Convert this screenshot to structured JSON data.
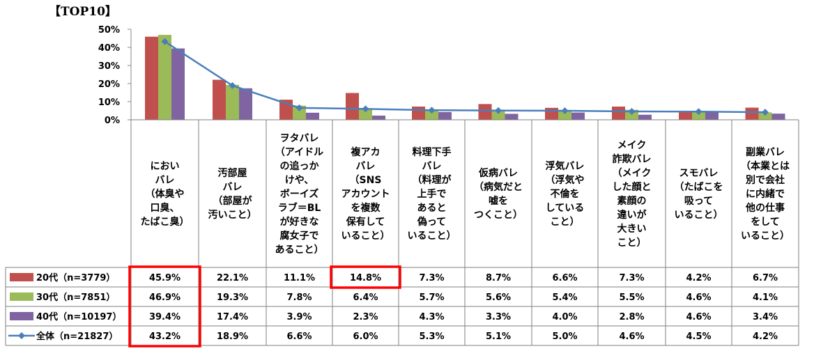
{
  "chart_data": {
    "type": "bar",
    "title": "【TOP10】",
    "yticks": [
      "50%",
      "40%",
      "30%",
      "20%",
      "10%",
      "0%"
    ],
    "ylim": [
      0,
      50
    ],
    "grid": false,
    "categories": [
      "においバレ（体臭や口臭、たばこ臭）",
      "汚部屋バレ（部屋が汚いこと）",
      "ヲタバレ（アイドルの追っかけや、ボーイズラブ＝BLが好きな腐女子であること）",
      "複アカバレ（SNSアカウントを複数保有していること）",
      "料理下手バレ（料理が上手であると偽っていること）",
      "仮病バレ（病気だと嘘をつくこと）",
      "浮気バレ（浮気や不倫をしていること）",
      "メイク詐欺バレ（メイクした顔と素顔の違いが大きいこと）",
      "スモバレ（たばこを吸っていること）",
      "副業バレ（本業とは別で会社に内緒で他の仕事をしていること）"
    ],
    "category_lines": [
      [
        "におい",
        "バレ",
        "（体臭や",
        "口臭、",
        "たばこ臭）"
      ],
      [
        "汚部屋",
        "バレ",
        "（部屋が",
        "汚いこと）"
      ],
      [
        "ヲタバレ",
        "（アイドル",
        "の追っか",
        "けや、",
        "ボーイズ",
        "ラブ＝BL",
        "が好きな",
        "腐女子で",
        "あること）"
      ],
      [
        "複アカ",
        "バレ",
        "（SNS",
        "アカウント",
        "を複数",
        "保有して",
        "いること）"
      ],
      [
        "料理下手",
        "バレ",
        "（料理が",
        "上手で",
        "あると",
        "偽って",
        "いること）"
      ],
      [
        "仮病バレ",
        "（病気だと",
        "嘘を",
        "つくこと）"
      ],
      [
        "浮気バレ",
        "（浮気や",
        "不倫を",
        "している",
        "こと）"
      ],
      [
        "メイク",
        "詐欺バレ",
        "（メイク",
        "した顔と",
        "素顔の",
        "違いが",
        "大きい",
        "こと）"
      ],
      [
        "スモバレ",
        "（たばこを",
        "吸って",
        "いること）"
      ],
      [
        "副業バレ",
        "（本業とは",
        "別で会社",
        "に内緒で",
        "他の仕事",
        "をして",
        "いること）"
      ]
    ],
    "series": [
      {
        "name": "20代（n=3779）",
        "type": "bar",
        "color": "#C0504D",
        "values": [
          45.9,
          22.1,
          11.1,
          14.8,
          7.3,
          8.7,
          6.6,
          7.3,
          4.2,
          6.7
        ],
        "labels": [
          "45.9%",
          "22.1%",
          "11.1%",
          "14.8%",
          "7.3%",
          "8.7%",
          "6.6%",
          "7.3%",
          "4.2%",
          "6.7%"
        ]
      },
      {
        "name": "30代（n=7851）",
        "type": "bar",
        "color": "#9BBB59",
        "values": [
          46.9,
          19.3,
          7.8,
          6.4,
          5.7,
          5.6,
          5.4,
          5.5,
          4.6,
          4.1
        ],
        "labels": [
          "46.9%",
          "19.3%",
          "7.8%",
          "6.4%",
          "5.7%",
          "5.6%",
          "5.4%",
          "5.5%",
          "4.6%",
          "4.1%"
        ]
      },
      {
        "name": "40代（n=10197）",
        "type": "bar",
        "color": "#8064A2",
        "values": [
          39.4,
          17.4,
          3.9,
          2.3,
          4.3,
          3.3,
          4.0,
          2.8,
          4.6,
          3.4
        ],
        "labels": [
          "39.4%",
          "17.4%",
          "3.9%",
          "2.3%",
          "4.3%",
          "3.3%",
          "4.0%",
          "2.8%",
          "4.6%",
          "3.4%"
        ]
      },
      {
        "name": "全体（n=21827）",
        "type": "line",
        "color": "#4A7EBB",
        "values": [
          43.2,
          18.9,
          6.6,
          6.0,
          5.3,
          5.1,
          5.0,
          4.6,
          4.5,
          4.2
        ],
        "labels": [
          "43.2%",
          "18.9%",
          "6.6%",
          "6.0%",
          "5.3%",
          "5.1%",
          "5.0%",
          "4.6%",
          "4.5%",
          "4.2%"
        ]
      }
    ],
    "highlights": [
      {
        "category_index": 0,
        "series_from": 0,
        "series_to": 3,
        "color": "#FF0000"
      },
      {
        "category_index": 3,
        "series_from": 0,
        "series_to": 0,
        "color": "#FF0000"
      }
    ]
  }
}
